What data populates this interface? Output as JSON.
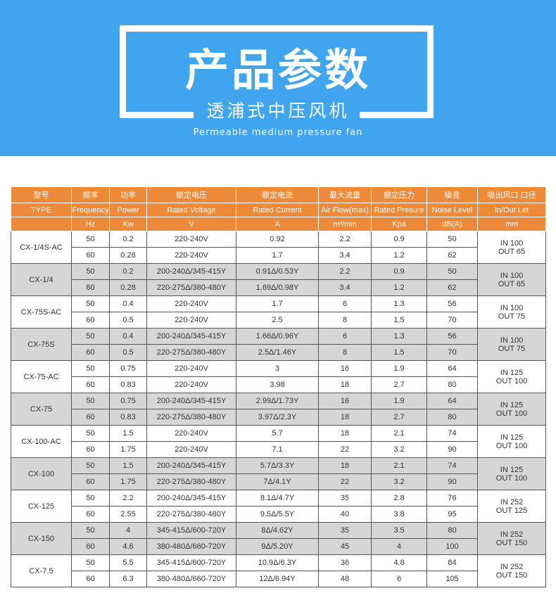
{
  "banner": {
    "title": "产品参数",
    "subtitle": "透浦式中压风机",
    "english": "Permeable medium pressure fan",
    "color": "#3fa5ee"
  },
  "table": {
    "header_color": "#ec8a3a",
    "headers_cn": [
      "型号",
      "频率",
      "功率",
      "额定电压",
      "额定电流",
      "最大流量",
      "额定压力",
      "噪音",
      "吸出风口 口径"
    ],
    "headers_en": [
      "TYPE",
      "Frequency",
      "Power",
      "Rated Voltage",
      "Rated Current",
      "Air Flow(max)",
      "Rated Presure",
      "Noise Level",
      "In/Out Let"
    ],
    "units": [
      "",
      "Hz",
      "Kw",
      "V",
      "A",
      "m³/min",
      "Kpa",
      "dB(A)",
      "mm"
    ],
    "models": [
      {
        "type": "CX-1/4S-AC",
        "port_in": "IN 100",
        "port_out": "OUT 65",
        "rows": [
          [
            "50",
            "0.2",
            "220-240V",
            "0.92",
            "2.2",
            "0.9",
            "50"
          ],
          [
            "60",
            "0.28",
            "220-240V",
            "1.7",
            "3.4",
            "1.2",
            "62"
          ]
        ]
      },
      {
        "type": "CX-1/4",
        "port_in": "IN 100",
        "port_out": "OUT 65",
        "rows": [
          [
            "50",
            "0.2",
            "200-240Δ/345-415Y",
            "0.91Δ/0.53Y",
            "2.2",
            "0.9",
            "50"
          ],
          [
            "60",
            "0.28",
            "220-275Δ/380-480Y",
            "1.69Δ/0.98Y",
            "3.4",
            "1.2",
            "62"
          ]
        ]
      },
      {
        "type": "CX-75S-AC",
        "port_in": "IN 100",
        "port_out": "OUT 75",
        "rows": [
          [
            "50",
            "0.4",
            "220-240V",
            "1.7",
            "6",
            "1.3",
            "56"
          ],
          [
            "60",
            "0.5",
            "220-240V",
            "2.5",
            "8",
            "1.5",
            "70"
          ]
        ]
      },
      {
        "type": "CX-75S",
        "port_in": "IN 100",
        "port_out": "OUT 75",
        "rows": [
          [
            "50",
            "0.4",
            "200-240Δ/345-415Y",
            "1.66Δ/0.96Y",
            "6",
            "1.3",
            "56"
          ],
          [
            "60",
            "0.5",
            "220-275Δ/380-480Y",
            "2.5Δ/1.46Y",
            "8",
            "1.5",
            "70"
          ]
        ]
      },
      {
        "type": "CX-75-AC",
        "port_in": "IN 125",
        "port_out": "OUT 100",
        "rows": [
          [
            "50",
            "0.75",
            "220-240V",
            "3",
            "16",
            "1.9",
            "64"
          ],
          [
            "60",
            "0.83",
            "220-240V",
            "3.98",
            "18",
            "2.7",
            "80"
          ]
        ]
      },
      {
        "type": "CX-75",
        "port_in": "IN 125",
        "port_out": "OUT 100",
        "rows": [
          [
            "50",
            "0.75",
            "200-240Δ/345-415Y",
            "2.99Δ/1.73Y",
            "16",
            "1.9",
            "64"
          ],
          [
            "60",
            "0.83",
            "220-275Δ/380-480Y",
            "3.97Δ/2.3Y",
            "18",
            "2.7",
            "80"
          ]
        ]
      },
      {
        "type": "CX-100-AC",
        "port_in": "IN 125",
        "port_out": "OUT 100",
        "rows": [
          [
            "50",
            "1.5",
            "220-240V",
            "5.7",
            "18",
            "2.1",
            "74"
          ],
          [
            "60",
            "1.75",
            "220-240V",
            "7.1",
            "22",
            "3.2",
            "90"
          ]
        ]
      },
      {
        "type": "CX-100",
        "port_in": "IN 125",
        "port_out": "OUT 100",
        "rows": [
          [
            "50",
            "1.5",
            "200-240Δ/345-415Y",
            "5.7Δ/3.3Y",
            "18",
            "2.1",
            "74"
          ],
          [
            "60",
            "1.75",
            "220-275Δ/380-480Y",
            "7Δ/4.1Y",
            "22",
            "3.2",
            "90"
          ]
        ]
      },
      {
        "type": "CX-125",
        "port_in": "IN 252",
        "port_out": "OUT 125",
        "rows": [
          [
            "50",
            "2.2",
            "200-240Δ/345-415Y",
            "8.1Δ/4.7Y",
            "35",
            "2.8",
            "76"
          ],
          [
            "60",
            "2.55",
            "220-275Δ/380-480Y",
            "9.5Δ/5.5Y",
            "40",
            "3.8",
            "95"
          ]
        ]
      },
      {
        "type": "CX-150",
        "port_in": "IN 252",
        "port_out": "OUT 150",
        "rows": [
          [
            "50",
            "4",
            "345-415Δ/600-720Y",
            "8Δ/4.62Y",
            "35",
            "3.5",
            "80"
          ],
          [
            "60",
            "4.6",
            "380-480Δ/660-720Y",
            "9Δ/5.20Y",
            "45",
            "4",
            "100"
          ]
        ]
      },
      {
        "type": "CX-7.5",
        "port_in": "IN 252",
        "port_out": "OUT 150",
        "rows": [
          [
            "50",
            "5.5",
            "345-415Δ/600-720Y",
            "10.9Δ/6.3Y",
            "36",
            "4.8",
            "84"
          ],
          [
            "60",
            "6.3",
            "380-480Δ/660-720Y",
            "12Δ/6.94Y",
            "48",
            "6",
            "105"
          ]
        ]
      }
    ]
  }
}
